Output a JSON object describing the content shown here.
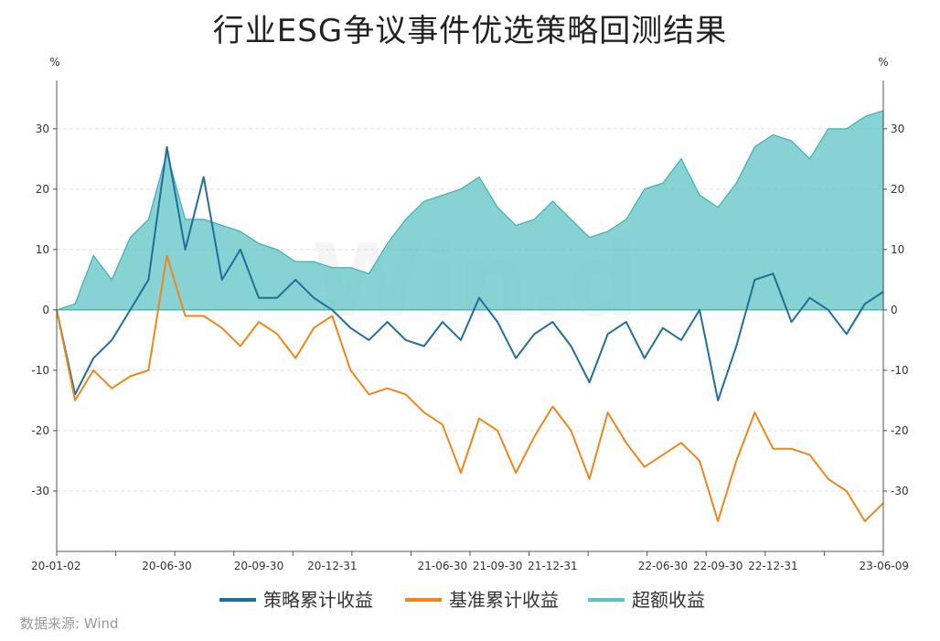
{
  "chart_data": {
    "type": "line",
    "title": "行业ESG争议事件优选策略回测结果",
    "y_unit_left": "%",
    "y_unit_right": "%",
    "ylim": [
      -40,
      38
    ],
    "y_ticks": [
      -30,
      -20,
      -10,
      0,
      10,
      20,
      30
    ],
    "x_tick_labels": [
      "20-01-02",
      "20-06-30",
      "20-09-30",
      "20-12-31",
      "21-06-30",
      "21-09-30",
      "21-12-31",
      "22-06-30",
      "22-09-30",
      "22-12-31",
      "23-06-09"
    ],
    "grid": true,
    "legend_position": "bottom",
    "x": [
      "20-01-02",
      "20-02-15",
      "20-03-20",
      "20-04-20",
      "20-05-20",
      "20-06-15",
      "20-06-30",
      "20-07-15",
      "20-08-01",
      "20-08-20",
      "20-09-10",
      "20-09-30",
      "20-10-20",
      "20-11-15",
      "20-12-10",
      "20-12-31",
      "21-01-31",
      "21-02-28",
      "21-03-31",
      "21-04-30",
      "21-05-31",
      "21-06-30",
      "21-07-31",
      "21-08-31",
      "21-09-30",
      "21-10-31",
      "21-11-30",
      "21-12-31",
      "22-01-31",
      "22-02-28",
      "22-03-31",
      "22-04-30",
      "22-05-31",
      "22-06-30",
      "22-07-31",
      "22-08-31",
      "22-09-30",
      "22-10-31",
      "22-11-30",
      "22-12-31",
      "23-01-31",
      "23-02-28",
      "23-03-31",
      "23-04-30",
      "23-05-20",
      "23-06-09"
    ],
    "series": [
      {
        "name": "策略累计收益",
        "color": "#1f6e9c",
        "values": [
          0,
          -14,
          -8,
          -5,
          0,
          5,
          27,
          10,
          22,
          5,
          10,
          2,
          2,
          5,
          2,
          0,
          -3,
          -5,
          -2,
          -5,
          -6,
          -2,
          -5,
          2,
          -2,
          -8,
          -4,
          -2,
          -6,
          -12,
          -4,
          -2,
          -8,
          -3,
          -5,
          0,
          -15,
          -6,
          5,
          6,
          -2,
          2,
          0,
          -4,
          1,
          3
        ]
      },
      {
        "name": "基准累计收益",
        "color": "#f0861a",
        "values": [
          0,
          -15,
          -10,
          -13,
          -11,
          -10,
          9,
          -1,
          -1,
          -3,
          -6,
          -2,
          -4,
          -8,
          -3,
          -1,
          -10,
          -14,
          -13,
          -14,
          -17,
          -19,
          -27,
          -18,
          -20,
          -27,
          -21,
          -16,
          -20,
          -28,
          -17,
          -22,
          -26,
          -24,
          -22,
          -25,
          -35,
          -25,
          -17,
          -23,
          -23,
          -24,
          -28,
          -30,
          -35,
          -32
        ]
      },
      {
        "name": "超额收益",
        "color": "#5fc3c3",
        "values": [
          0,
          1,
          9,
          5,
          12,
          15,
          26,
          15,
          15,
          14,
          13,
          11,
          10,
          8,
          8,
          7,
          7,
          6,
          11,
          15,
          18,
          19,
          20,
          22,
          17,
          14,
          15,
          18,
          15,
          12,
          13,
          15,
          20,
          21,
          25,
          19,
          17,
          21,
          27,
          29,
          28,
          25,
          30,
          30,
          32,
          33
        ]
      }
    ]
  },
  "source": "数据来源: Wind"
}
